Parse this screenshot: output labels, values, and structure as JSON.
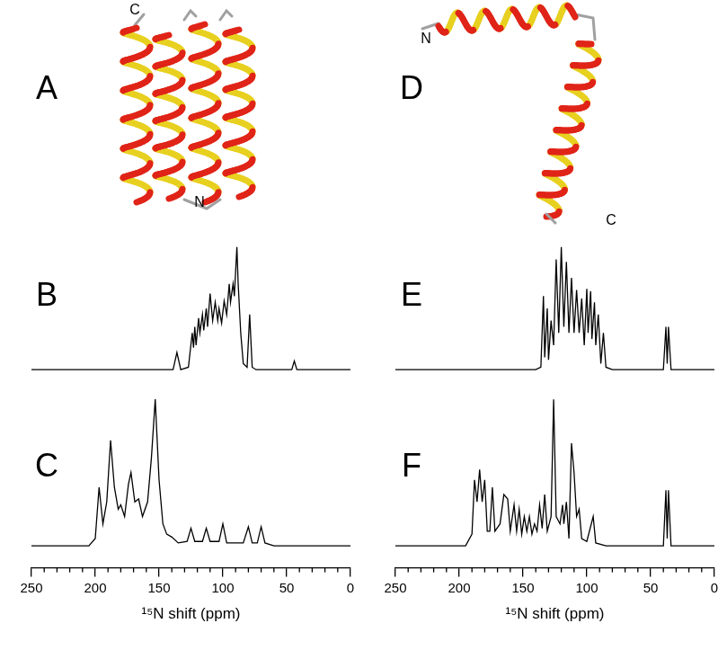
{
  "diagrams": [
    {
      "panel": "A",
      "labels": [
        "C",
        "N"
      ]
    },
    {
      "panel": "D",
      "labels": [
        "N",
        "C"
      ]
    }
  ],
  "chart_data": [
    {
      "panel": "B",
      "type": "line",
      "color": "#000000",
      "xlim": [
        250,
        0
      ],
      "ylim": [
        -0.05,
        1.05
      ],
      "tick_labels": false,
      "x": [
        250,
        139,
        136,
        133,
        127,
        124,
        123,
        122,
        121,
        119,
        118,
        116,
        115,
        113,
        112,
        110,
        108,
        106,
        104,
        103,
        101,
        99,
        97,
        95,
        94,
        92,
        91,
        89,
        88,
        86,
        84,
        81,
        79,
        77,
        74,
        46,
        44,
        42,
        0
      ],
      "values": [
        0,
        0,
        0.14,
        0,
        0.02,
        0.3,
        0.18,
        0.35,
        0.2,
        0.42,
        0.3,
        0.45,
        0.32,
        0.5,
        0.35,
        0.62,
        0.4,
        0.55,
        0.4,
        0.5,
        0.38,
        0.56,
        0.45,
        0.7,
        0.55,
        0.7,
        0.6,
        1.0,
        0.7,
        0.3,
        0.05,
        0.02,
        0.45,
        0.02,
        0,
        0,
        0.07,
        0,
        0
      ]
    },
    {
      "panel": "C",
      "type": "line",
      "color": "#000000",
      "xlim": [
        250,
        0
      ],
      "ylim": [
        -0.15,
        1.05
      ],
      "xticks": [
        250,
        200,
        150,
        100,
        50,
        0
      ],
      "xlabel": "¹⁵N shift (ppm)",
      "tick_labels": "x",
      "x": [
        250,
        205,
        200,
        197,
        194,
        191,
        188,
        185,
        182,
        180,
        177,
        174,
        172,
        169,
        166,
        163,
        159,
        156,
        153,
        150,
        147,
        144,
        140,
        135,
        128,
        125,
        122,
        116,
        113,
        110,
        103,
        100,
        97,
        84,
        80,
        77,
        73,
        70,
        67,
        60,
        0
      ],
      "values": [
        0,
        0,
        0.05,
        0.4,
        0.15,
        0.3,
        0.72,
        0.4,
        0.25,
        0.28,
        0.2,
        0.42,
        0.5,
        0.3,
        0.32,
        0.2,
        0.3,
        0.6,
        1.0,
        0.45,
        0.15,
        0.08,
        0.06,
        0.02,
        0.03,
        0.12,
        0.03,
        0.03,
        0.12,
        0.03,
        0.03,
        0.15,
        0.02,
        0.02,
        0.13,
        0.02,
        0.02,
        0.13,
        0.02,
        0,
        0
      ]
    },
    {
      "panel": "E",
      "type": "line",
      "color": "#000000",
      "xlim": [
        250,
        0
      ],
      "ylim": [
        -0.05,
        1.05
      ],
      "tick_labels": false,
      "x": [
        250,
        140,
        136,
        134,
        133,
        131,
        130,
        128,
        126,
        124,
        122,
        120,
        118,
        116,
        114,
        112,
        110,
        108,
        106,
        104,
        102,
        100,
        99,
        97,
        96,
        94,
        93,
        91,
        89,
        87,
        85,
        80,
        40,
        38,
        37,
        36,
        34,
        0
      ],
      "values": [
        0,
        0,
        0.02,
        0.6,
        0.1,
        0.5,
        0.08,
        0.4,
        0.2,
        0.9,
        0.3,
        1.0,
        0.35,
        0.88,
        0.3,
        0.75,
        0.3,
        0.65,
        0.3,
        0.58,
        0.2,
        0.66,
        0.3,
        0.64,
        0.25,
        0.55,
        0.2,
        0.45,
        0.05,
        0.3,
        0.02,
        0,
        0,
        0.35,
        0.05,
        0.35,
        0,
        0
      ]
    },
    {
      "panel": "F",
      "type": "line",
      "color": "#000000",
      "xlim": [
        250,
        0
      ],
      "ylim": [
        -0.15,
        1.05
      ],
      "xticks": [
        250,
        200,
        150,
        100,
        50,
        0
      ],
      "xlabel": "¹⁵N shift (ppm)",
      "tick_labels": "x",
      "x": [
        250,
        195,
        190,
        188,
        186,
        184,
        182,
        180,
        178,
        176,
        174,
        172,
        168,
        165,
        162,
        160,
        157,
        155,
        153,
        151,
        149,
        147,
        145,
        143,
        141,
        139,
        137,
        135,
        133,
        131,
        128,
        126,
        124,
        121,
        119,
        118,
        116,
        114,
        112,
        110,
        108,
        106,
        104,
        100,
        95,
        93,
        85,
        40,
        38,
        37,
        36,
        34,
        0
      ],
      "values": [
        0,
        0,
        0.08,
        0.45,
        0.3,
        0.52,
        0.3,
        0.45,
        0.1,
        0.1,
        0.4,
        0.1,
        0.15,
        0.35,
        0.32,
        0.1,
        0.28,
        0.1,
        0.25,
        0.08,
        0.2,
        0.1,
        0.2,
        0.08,
        0.15,
        0.1,
        0.28,
        0.12,
        0.35,
        0.1,
        0.2,
        1.0,
        0.2,
        0.15,
        0.28,
        0.15,
        0.3,
        0.05,
        0.7,
        0.5,
        0.2,
        0.25,
        0.05,
        0.03,
        0.2,
        0.02,
        0,
        0,
        0.38,
        0.05,
        0.38,
        0,
        0
      ]
    }
  ]
}
